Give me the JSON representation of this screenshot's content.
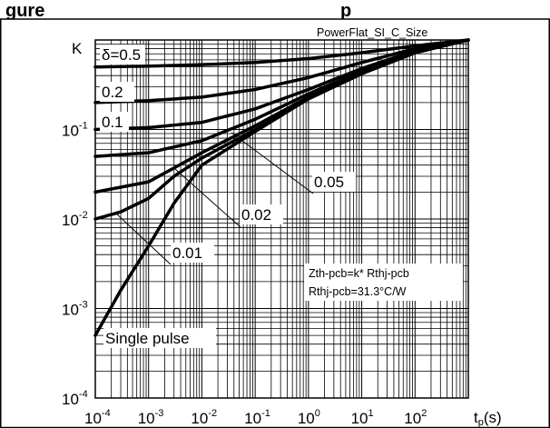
{
  "chart_data": {
    "type": "line",
    "title_partial": "gure",
    "title_partial_2": "p",
    "chart_label": "PowerFlat_SI_C_Size",
    "ylabel": "K",
    "xlabel_main": "t",
    "xlabel_sub": "p",
    "xlabel_unit": "(s)",
    "x_scale": "log",
    "y_scale": "log",
    "xlim": [
      0.0001,
      1000
    ],
    "ylim": [
      0.0001,
      1
    ],
    "grid": true,
    "x_ticks": [
      {
        "base": "10",
        "exp": "-4",
        "value": 0.0001
      },
      {
        "base": "10",
        "exp": "-3",
        "value": 0.001
      },
      {
        "base": "10",
        "exp": "-2",
        "value": 0.01
      },
      {
        "base": "10",
        "exp": "-1",
        "value": 0.1
      },
      {
        "base": "10",
        "exp": "0",
        "value": 1
      },
      {
        "base": "10",
        "exp": "1",
        "value": 10
      },
      {
        "base": "10",
        "exp": "2",
        "value": 100
      }
    ],
    "y_ticks": [
      {
        "base": "10",
        "exp": "-1",
        "value": 0.1
      },
      {
        "base": "10",
        "exp": "-2",
        "value": 0.01
      },
      {
        "base": "10",
        "exp": "-3",
        "value": 0.001
      },
      {
        "base": "10",
        "exp": "-4",
        "value": 0.0001
      }
    ],
    "annotation_lines": [
      "Zth-pcb=k* Rthj-pcb",
      "Rthj-pcb=31.3°C/W"
    ],
    "series": [
      {
        "name": "δ=0.5",
        "x": [
          0.0001,
          0.001,
          0.01,
          0.1,
          1,
          10,
          100,
          1000
        ],
        "y": [
          0.5,
          0.51,
          0.53,
          0.56,
          0.62,
          0.72,
          0.86,
          1.0
        ]
      },
      {
        "name": "0.2",
        "x": [
          0.0001,
          0.001,
          0.01,
          0.1,
          1,
          10,
          100,
          1000
        ],
        "y": [
          0.2,
          0.21,
          0.23,
          0.28,
          0.38,
          0.56,
          0.8,
          1.0
        ]
      },
      {
        "name": "0.1",
        "x": [
          0.0001,
          0.001,
          0.01,
          0.1,
          1,
          10,
          100,
          1000
        ],
        "y": [
          0.1,
          0.105,
          0.12,
          0.17,
          0.28,
          0.48,
          0.76,
          1.0
        ]
      },
      {
        "name": "0.05",
        "x": [
          0.0001,
          0.001,
          0.01,
          0.1,
          1,
          10,
          100,
          1000
        ],
        "y": [
          0.05,
          0.055,
          0.075,
          0.13,
          0.25,
          0.45,
          0.74,
          1.0
        ]
      },
      {
        "name": "0.02",
        "x": [
          0.0001,
          0.001,
          0.01,
          0.1,
          1,
          10,
          100,
          1000
        ],
        "y": [
          0.02,
          0.026,
          0.055,
          0.11,
          0.23,
          0.43,
          0.73,
          1.0
        ]
      },
      {
        "name": "0.01",
        "x": [
          0.0001,
          0.0003,
          0.001,
          0.003,
          0.01,
          0.1,
          1,
          10,
          100,
          1000
        ],
        "y": [
          0.01,
          0.012,
          0.017,
          0.03,
          0.048,
          0.1,
          0.22,
          0.42,
          0.72,
          1.0
        ]
      },
      {
        "name": "Single pulse",
        "x": [
          0.0001,
          0.0003,
          0.001,
          0.003,
          0.01,
          0.1,
          1,
          10,
          100,
          1000
        ],
        "y": [
          0.0005,
          0.0016,
          0.005,
          0.015,
          0.04,
          0.095,
          0.22,
          0.42,
          0.72,
          1.0
        ]
      }
    ]
  }
}
